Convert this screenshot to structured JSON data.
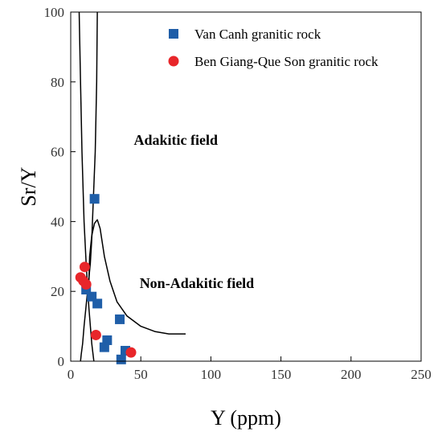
{
  "chart_data": {
    "type": "scatter",
    "xlabel": "Y (ppm)",
    "ylabel": "Sr/Y",
    "xlim": [
      0,
      250
    ],
    "ylim": [
      0,
      100
    ],
    "xticks": [
      0,
      50,
      100,
      150,
      200,
      250
    ],
    "yticks": [
      0,
      20,
      40,
      60,
      80,
      100
    ],
    "grid": false,
    "legend": "top-right",
    "series": [
      {
        "name": "Van Canh granitic rock",
        "marker": "square",
        "color": "#1f5ea8",
        "points": [
          {
            "x": 17,
            "y": 46.5
          },
          {
            "x": 11,
            "y": 20.5
          },
          {
            "x": 15,
            "y": 18.5
          },
          {
            "x": 19,
            "y": 16.5
          },
          {
            "x": 35,
            "y": 12
          },
          {
            "x": 26,
            "y": 6
          },
          {
            "x": 24,
            "y": 4
          },
          {
            "x": 39,
            "y": 3
          },
          {
            "x": 36,
            "y": 0.5
          }
        ]
      },
      {
        "name": "Ben Giang-Que Son granitic rock",
        "marker": "circle",
        "color": "#e8262a",
        "points": [
          {
            "x": 10,
            "y": 27
          },
          {
            "x": 7,
            "y": 24
          },
          {
            "x": 9,
            "y": 23
          },
          {
            "x": 11,
            "y": 22
          },
          {
            "x": 18,
            "y": 7.5
          },
          {
            "x": 43,
            "y": 2.5
          }
        ]
      }
    ],
    "boundaries": [
      [
        [
          6,
          100
        ],
        [
          7,
          80
        ],
        [
          8,
          60
        ],
        [
          9.5,
          40
        ],
        [
          11,
          28
        ],
        [
          13,
          15
        ],
        [
          15,
          5
        ],
        [
          16.5,
          0
        ]
      ],
      [
        [
          19,
          100
        ],
        [
          18.5,
          80
        ],
        [
          17.5,
          60
        ],
        [
          16,
          45
        ],
        [
          15,
          35
        ],
        [
          14,
          28
        ],
        [
          12.5,
          22
        ],
        [
          11,
          16
        ],
        [
          9.5,
          10
        ],
        [
          8.5,
          5
        ],
        [
          7.5,
          2
        ],
        [
          7,
          0
        ]
      ],
      [
        [
          13,
          23
        ],
        [
          13.5,
          30
        ],
        [
          15,
          36
        ],
        [
          17,
          39.5
        ],
        [
          19,
          40.5
        ],
        [
          21,
          38
        ],
        [
          24,
          30
        ],
        [
          28,
          23
        ],
        [
          33,
          17
        ],
        [
          40,
          13
        ],
        [
          50,
          10
        ],
        [
          60,
          8.5
        ],
        [
          70,
          7.8
        ],
        [
          82,
          7.8
        ]
      ]
    ],
    "annotations": [
      {
        "text": "Adakitic field",
        "x": 75,
        "y": 62
      },
      {
        "text": "Non-Adakitic field",
        "x": 90,
        "y": 21
      }
    ]
  }
}
